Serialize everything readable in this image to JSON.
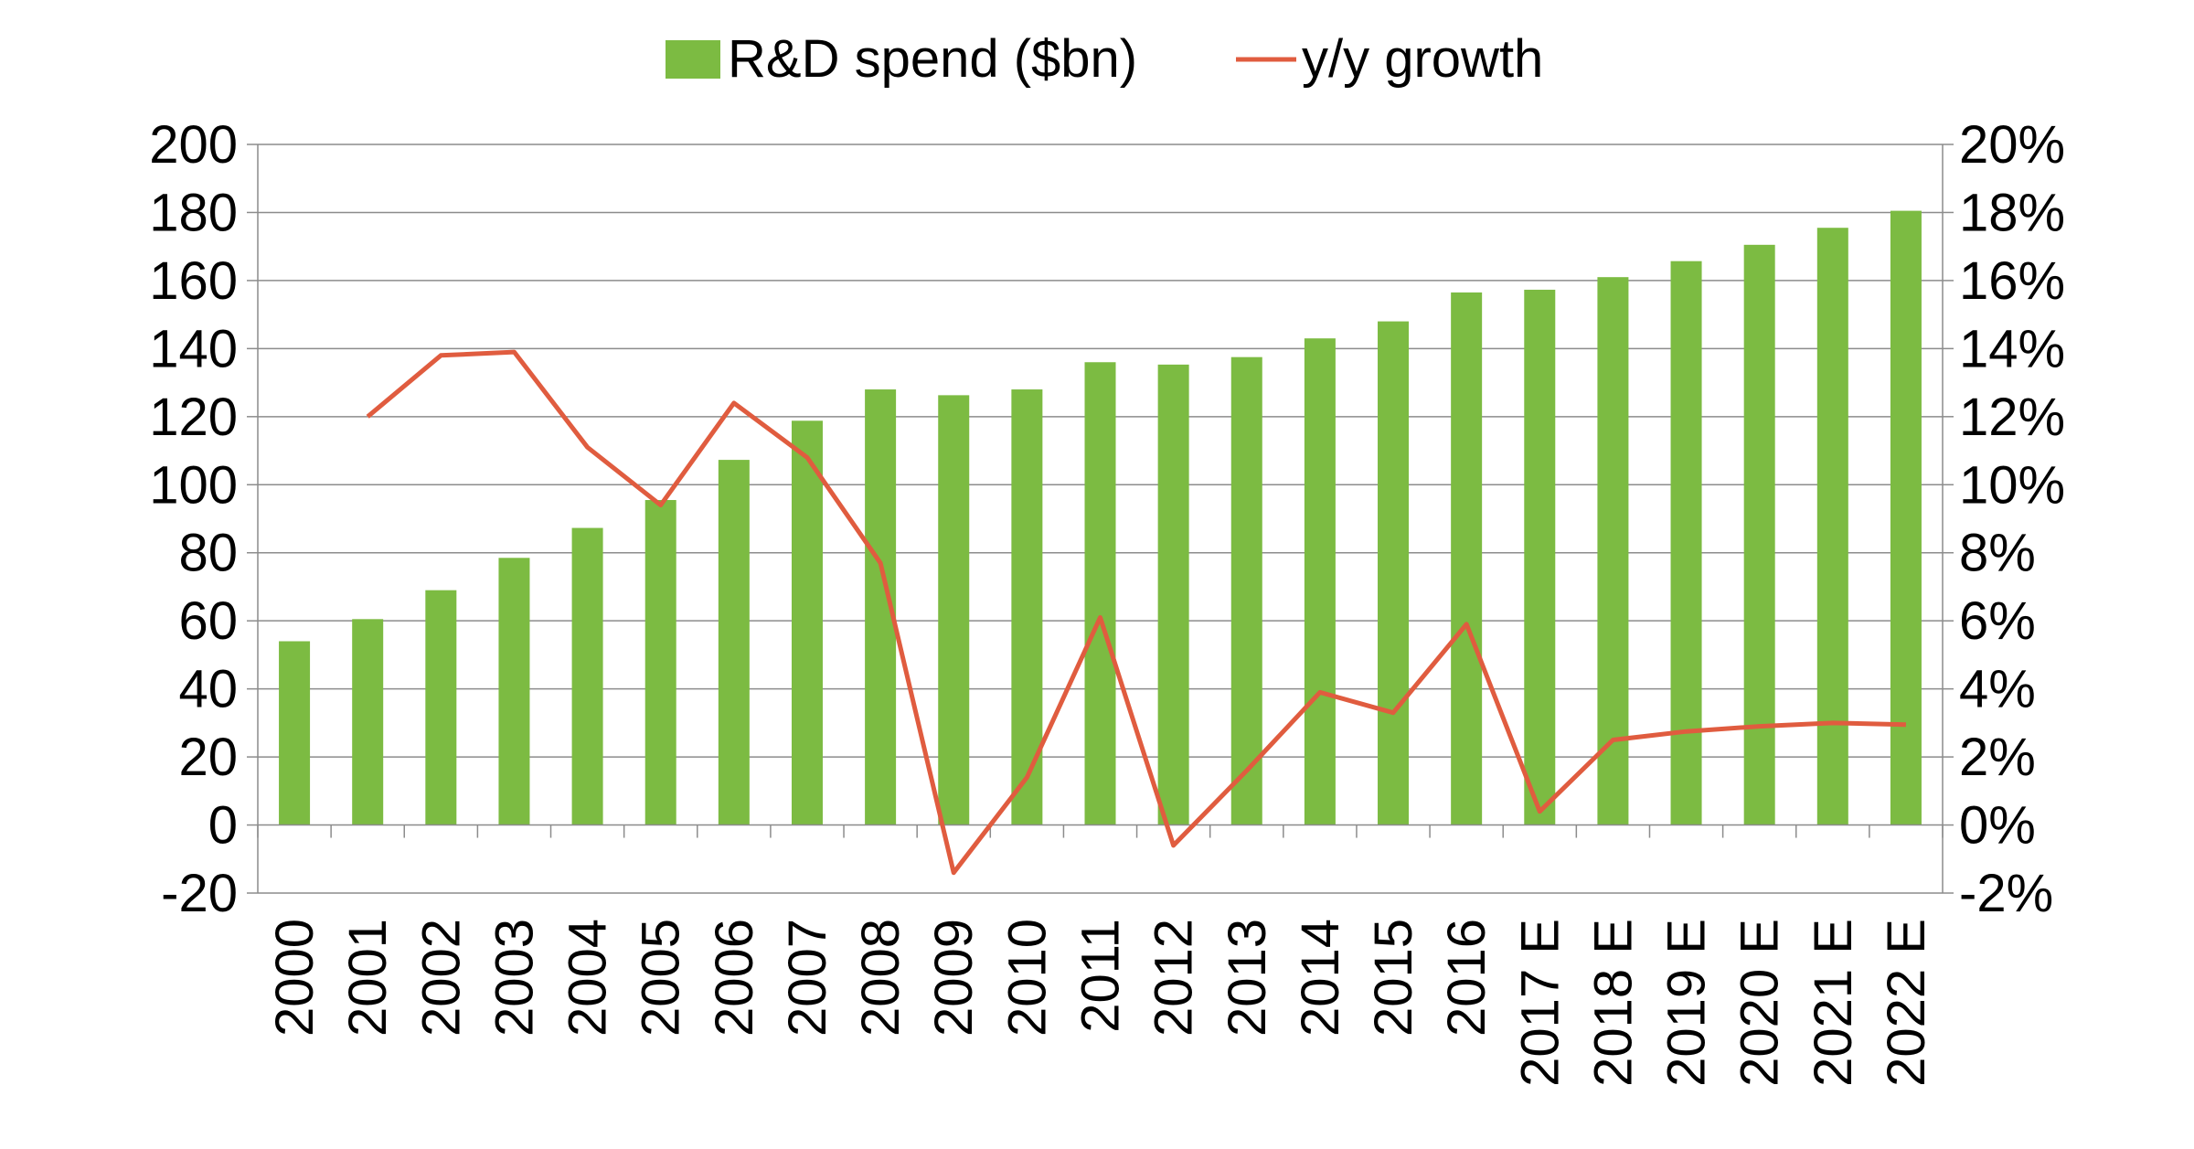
{
  "chart_data": {
    "type": "bar",
    "categories": [
      "2000",
      "2001",
      "2002",
      "2003",
      "2004",
      "2005",
      "2006",
      "2007",
      "2008",
      "2009",
      "2010",
      "2011",
      "2012",
      "2013",
      "2014",
      "2015",
      "2016",
      "2017 E",
      "2018 E",
      "2019 E",
      "2020 E",
      "2021 E",
      "2022 E"
    ],
    "series": [
      {
        "name": "R&D spend ($bn)",
        "type": "bar",
        "axis": "left",
        "color": "#7cbb42",
        "values": [
          54,
          60.5,
          69,
          78.5,
          87.3,
          95.5,
          107.3,
          118.8,
          128,
          126.3,
          128,
          136,
          135.3,
          137.5,
          143,
          148,
          156.5,
          157.3,
          161,
          165.7,
          170.5,
          175.5,
          180.5
        ]
      },
      {
        "name": "y/y growth",
        "type": "line",
        "axis": "right",
        "color": "#e05c3f",
        "values": [
          null,
          12.0,
          13.8,
          13.9,
          11.1,
          9.4,
          12.4,
          10.8,
          7.7,
          -1.4,
          1.4,
          6.1,
          -0.6,
          1.6,
          3.9,
          3.3,
          5.9,
          0.4,
          2.5,
          2.75,
          2.9,
          3.0,
          2.95
        ]
      }
    ],
    "y_left": {
      "ylim": [
        -20,
        200
      ],
      "ticks": [
        "200",
        "180",
        "160",
        "140",
        "120",
        "100",
        "80",
        "60",
        "40",
        "20",
        "0",
        "-20"
      ]
    },
    "y_right": {
      "ylim": [
        -2,
        20
      ],
      "ticks": [
        "20%",
        "18%",
        "16%",
        "14%",
        "12%",
        "10%",
        "8%",
        "6%",
        "4%",
        "2%",
        "0%",
        "-2%"
      ]
    },
    "grid": true,
    "legend_position": "top",
    "title": "",
    "xlabel": "",
    "ylabel": ""
  }
}
